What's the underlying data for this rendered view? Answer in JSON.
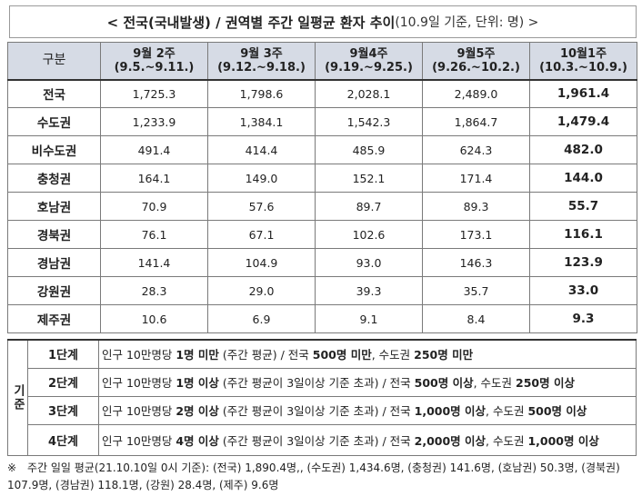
{
  "title": {
    "main": "< 전국(국내발생) / 권역별 주간 일평균 환자 추이",
    "sub": " (10.9일 기준, 단위: 명) >"
  },
  "table": {
    "header_label": "구분",
    "weeks": [
      {
        "week": "9월 2주",
        "range": "(9.5.~9.11.)"
      },
      {
        "week": "9월 3주",
        "range": "(9.12.~9.18.)"
      },
      {
        "week": "9월4주",
        "range": "(9.19.~9.25.)"
      },
      {
        "week": "9월5주",
        "range": "(9.26.~10.2.)"
      },
      {
        "week": "10월1주",
        "range": "(10.3.~10.9.)"
      }
    ],
    "rows": [
      {
        "region": "전국",
        "values": [
          "1,725.3",
          "1,798.6",
          "2,028.1",
          "2,489.0",
          "1,961.4"
        ]
      },
      {
        "region": "수도권",
        "values": [
          "1,233.9",
          "1,384.1",
          "1,542.3",
          "1,864.7",
          "1,479.4"
        ]
      },
      {
        "region": "비수도권",
        "values": [
          "491.4",
          "414.4",
          "485.9",
          "624.3",
          "482.0"
        ]
      },
      {
        "region": "충청권",
        "values": [
          "164.1",
          "149.0",
          "152.1",
          "171.4",
          "144.0"
        ]
      },
      {
        "region": "호남권",
        "values": [
          "70.9",
          "57.6",
          "89.7",
          "89.3",
          "55.7"
        ]
      },
      {
        "region": "경북권",
        "values": [
          "76.1",
          "67.1",
          "102.6",
          "173.1",
          "116.1"
        ]
      },
      {
        "region": "경남권",
        "values": [
          "141.4",
          "104.9",
          "93.0",
          "146.3",
          "123.9"
        ]
      },
      {
        "region": "강원권",
        "values": [
          "28.3",
          "29.0",
          "39.3",
          "35.7",
          "33.0"
        ]
      },
      {
        "region": "제주권",
        "values": [
          "10.6",
          "6.9",
          "9.1",
          "8.4",
          "9.3"
        ]
      }
    ]
  },
  "criteria": {
    "label": "기준",
    "levels": [
      {
        "level": "1단계",
        "segments": [
          {
            "t": "인구 10만명당 ",
            "b": false
          },
          {
            "t": "1명 미만",
            "b": true
          },
          {
            "t": " (주간 평균) / 전국 ",
            "b": false
          },
          {
            "t": "500명 미만",
            "b": true
          },
          {
            "t": ", 수도권 ",
            "b": false
          },
          {
            "t": "250명 미만",
            "b": true
          }
        ]
      },
      {
        "level": "2단계",
        "segments": [
          {
            "t": "인구 10만명당 ",
            "b": false
          },
          {
            "t": "1명 이상",
            "b": true
          },
          {
            "t": " (주간 평균이 3일이상 기준 초과) / 전국 ",
            "b": false
          },
          {
            "t": "500명 이상",
            "b": true
          },
          {
            "t": ", 수도권 ",
            "b": false
          },
          {
            "t": "250명 이상",
            "b": true
          }
        ]
      },
      {
        "level": "3단계",
        "segments": [
          {
            "t": "인구 10만명당 ",
            "b": false
          },
          {
            "t": "2명 이상",
            "b": true
          },
          {
            "t": " (주간 평균이 3일이상 기준 초과) / 전국 ",
            "b": false
          },
          {
            "t": "1,000명 이상",
            "b": true
          },
          {
            "t": ", 수도권 ",
            "b": false
          },
          {
            "t": "500명 이상",
            "b": true
          }
        ]
      },
      {
        "level": "4단계",
        "segments": [
          {
            "t": "인구 10만명당 ",
            "b": false
          },
          {
            "t": "4명 이상",
            "b": true
          },
          {
            "t": " (주간 평균이 3일이상 기준 초과) / 전국 ",
            "b": false
          },
          {
            "t": "2,000명 이상",
            "b": true
          },
          {
            "t": ", 수도권 ",
            "b": false
          },
          {
            "t": "1,000명 이상",
            "b": true
          }
        ]
      }
    ]
  },
  "footnote": {
    "mark": "※",
    "line1": "주간 일일 평균(21.10.10일 0시 기준): (전국) 1,890.4명,, (수도권) 1,434.6명, (충청권) 141.6명, (호남권) 50.3명, (경북권)",
    "line2": "107.9명, (경남권) 118.1명, (강원) 28.4명, (제주) 9.6명"
  }
}
